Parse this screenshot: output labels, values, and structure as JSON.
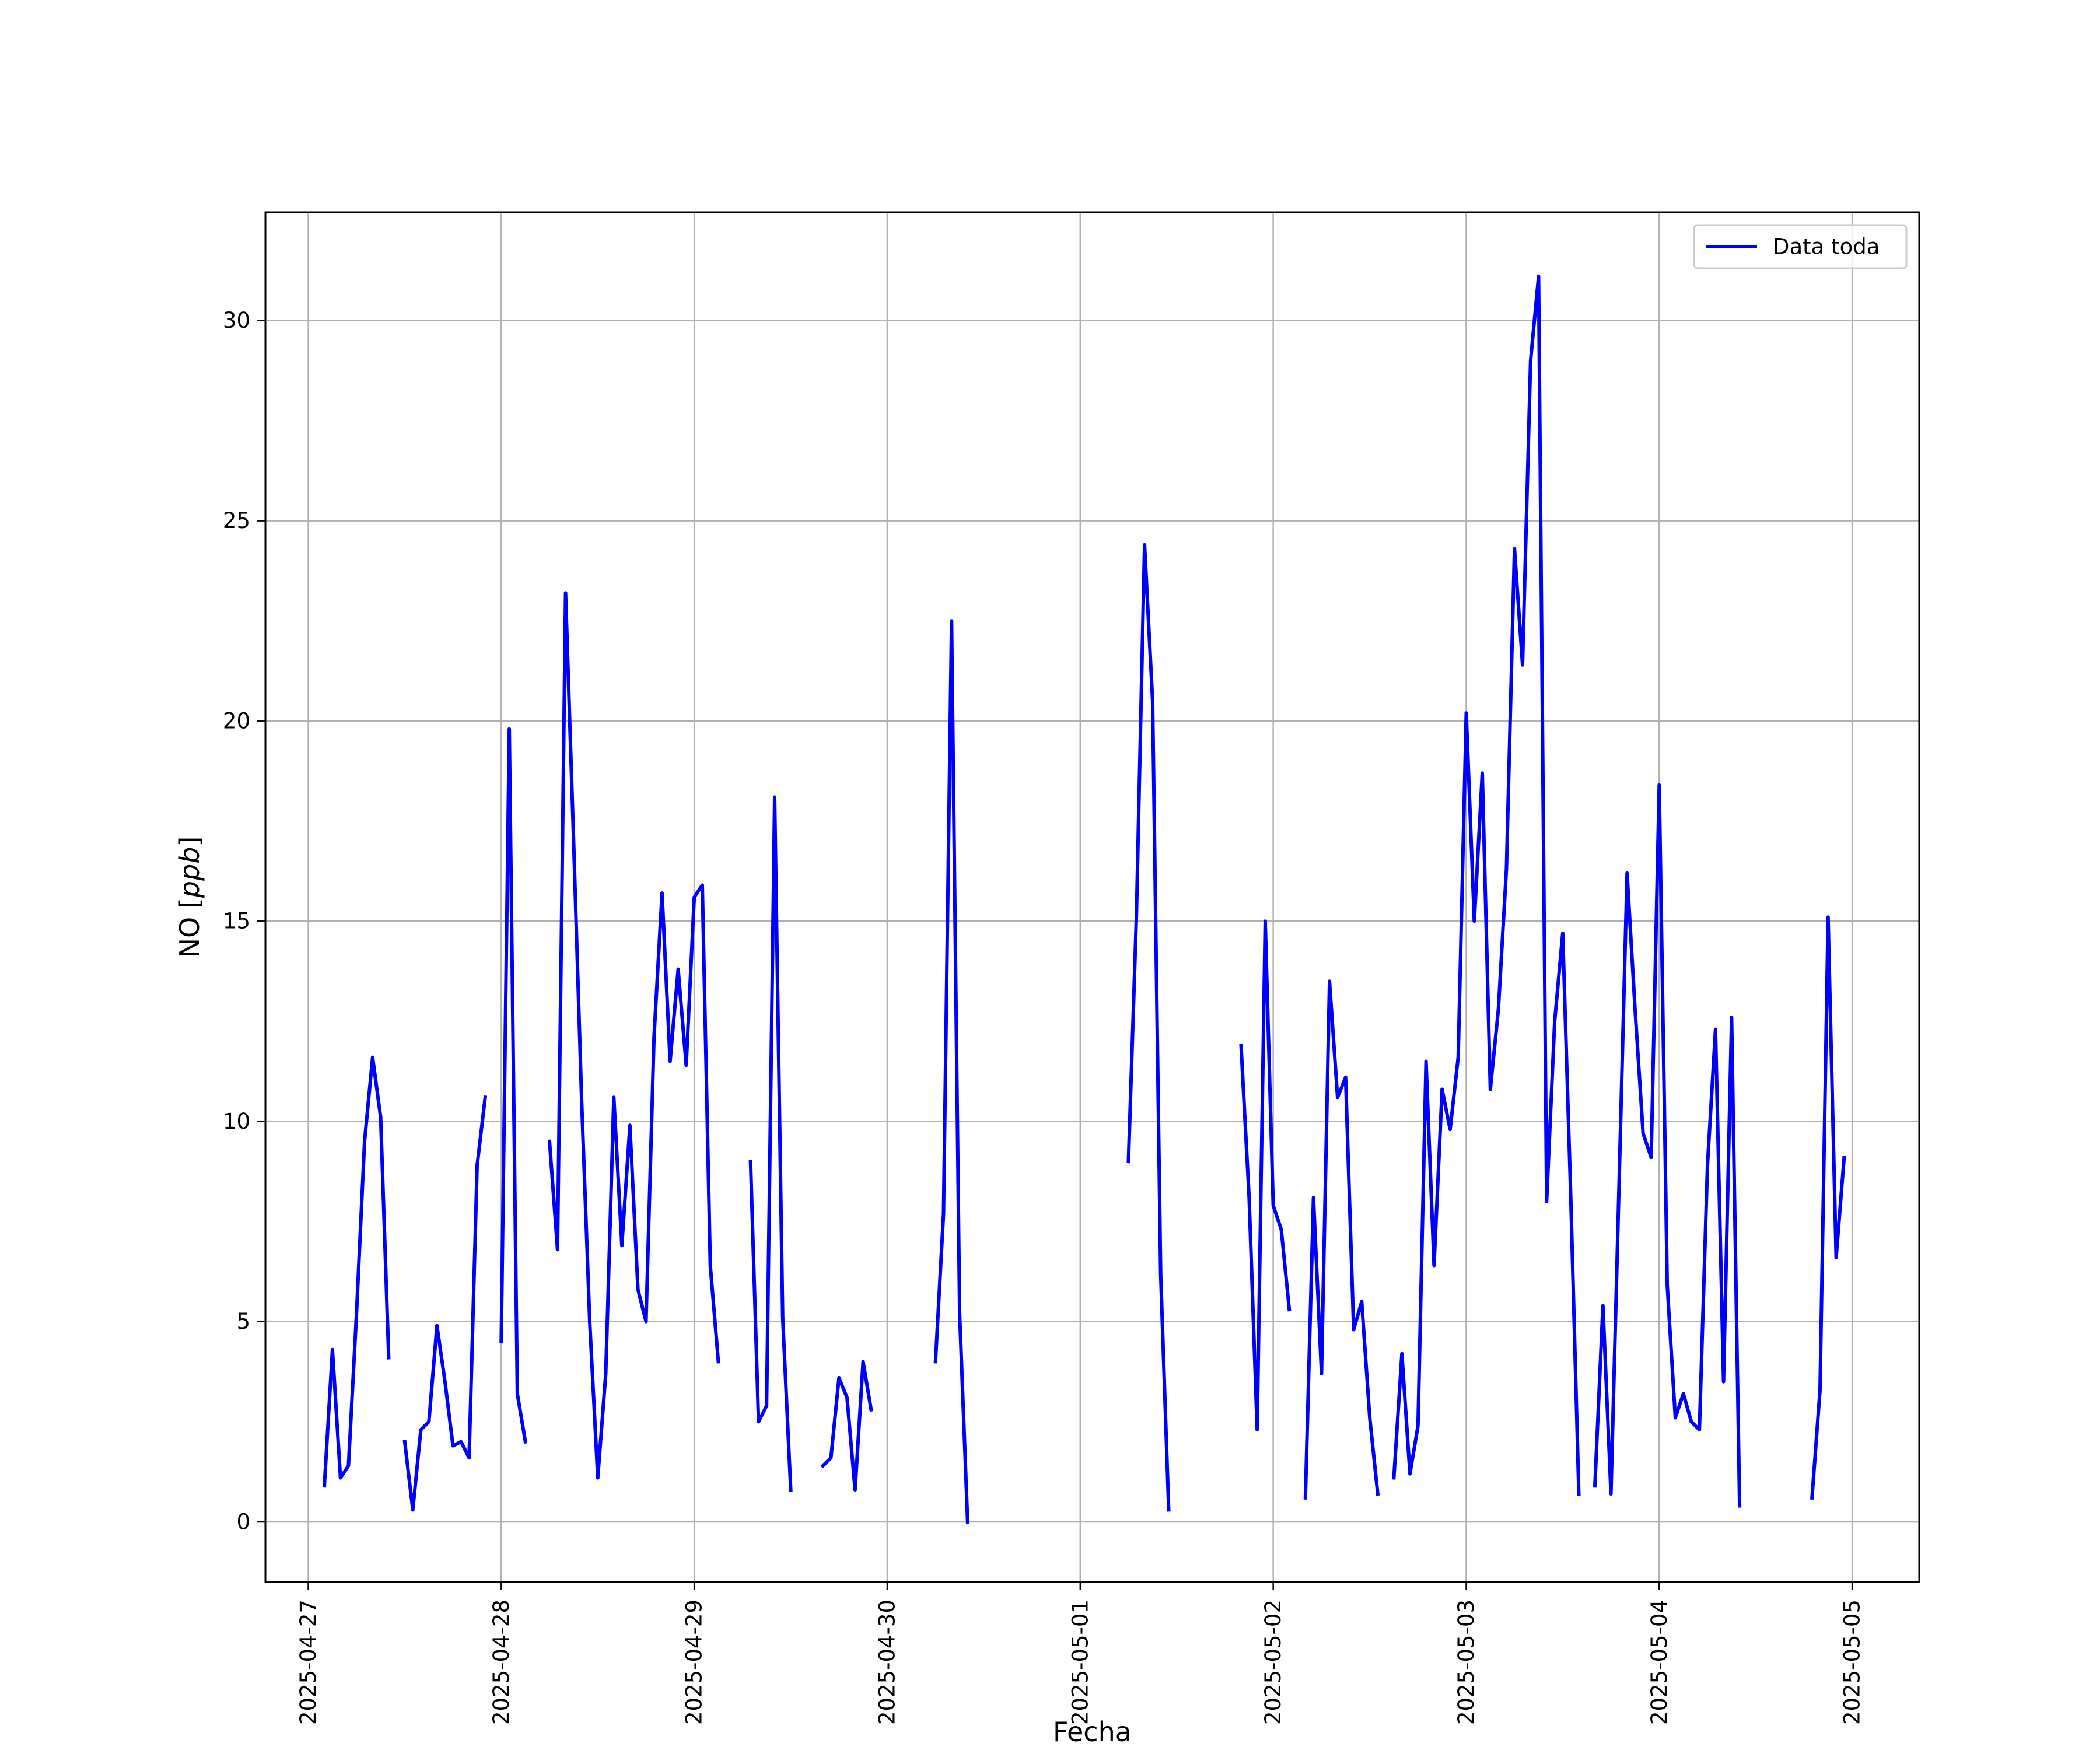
{
  "chart_data": {
    "type": "line",
    "title": "",
    "xlabel": "Fecha",
    "ylabel": "NO",
    "ylabel_unit": "ppb",
    "x_ticks": [
      "2025-04-27",
      "2025-04-28",
      "2025-04-29",
      "2025-04-30",
      "2025-05-01",
      "2025-05-02",
      "2025-05-03",
      "2025-05-04",
      "2025-05-05"
    ],
    "y_ticks": [
      0,
      5,
      10,
      15,
      20,
      25,
      30
    ],
    "xlim": [
      "2025-04-26T18:40",
      "2025-05-05T08:20"
    ],
    "ylim": [
      -1.5,
      32.7
    ],
    "grid": true,
    "legend_position": "top-right",
    "line_color": "#0000ff",
    "series": [
      {
        "name": "Data toda",
        "color": "#0000ff",
        "segments": [
          [
            [
              "2025-04-27T02:00",
              0.9
            ],
            [
              "2025-04-27T03:00",
              4.3
            ],
            [
              "2025-04-27T04:00",
              1.1
            ],
            [
              "2025-04-27T05:00",
              1.4
            ],
            [
              "2025-04-27T06:00",
              5.2
            ],
            [
              "2025-04-27T07:00",
              9.5
            ],
            [
              "2025-04-27T08:00",
              11.6
            ],
            [
              "2025-04-27T09:00",
              10.1
            ],
            [
              "2025-04-27T10:00",
              4.1
            ]
          ],
          [
            [
              "2025-04-27T12:00",
              2.0
            ],
            [
              "2025-04-27T13:00",
              0.3
            ],
            [
              "2025-04-27T14:00",
              2.3
            ],
            [
              "2025-04-27T15:00",
              2.5
            ],
            [
              "2025-04-27T16:00",
              4.9
            ],
            [
              "2025-04-27T17:00",
              3.5
            ],
            [
              "2025-04-27T18:00",
              1.9
            ],
            [
              "2025-04-27T19:00",
              2.0
            ],
            [
              "2025-04-27T20:00",
              1.6
            ],
            [
              "2025-04-27T21:00",
              8.9
            ],
            [
              "2025-04-27T22:00",
              10.6
            ]
          ],
          [
            [
              "2025-04-28T00:00",
              4.5
            ],
            [
              "2025-04-28T01:00",
              19.8
            ],
            [
              "2025-04-28T02:00",
              3.2
            ],
            [
              "2025-04-28T03:00",
              2.0
            ]
          ],
          [
            [
              "2025-04-28T06:00",
              9.5
            ],
            [
              "2025-04-28T07:00",
              6.8
            ],
            [
              "2025-04-28T08:00",
              23.2
            ],
            [
              "2025-04-28T09:00",
              17.0
            ],
            [
              "2025-04-28T10:00",
              10.5
            ],
            [
              "2025-04-28T11:00",
              5.0
            ],
            [
              "2025-04-28T12:00",
              1.1
            ],
            [
              "2025-04-28T13:00",
              3.7
            ],
            [
              "2025-04-28T14:00",
              10.6
            ],
            [
              "2025-04-28T15:00",
              6.9
            ],
            [
              "2025-04-28T16:00",
              9.9
            ],
            [
              "2025-04-28T17:00",
              5.8
            ],
            [
              "2025-04-28T18:00",
              5.0
            ],
            [
              "2025-04-28T19:00",
              12.1
            ],
            [
              "2025-04-28T20:00",
              15.7
            ],
            [
              "2025-04-28T21:00",
              11.5
            ],
            [
              "2025-04-28T22:00",
              13.8
            ],
            [
              "2025-04-28T23:00",
              11.4
            ],
            [
              "2025-04-29T00:00",
              15.6
            ],
            [
              "2025-04-29T01:00",
              15.9
            ],
            [
              "2025-04-29T02:00",
              6.4
            ],
            [
              "2025-04-29T03:00",
              4.0
            ]
          ],
          [
            [
              "2025-04-29T07:00",
              9.0
            ],
            [
              "2025-04-29T08:00",
              2.5
            ],
            [
              "2025-04-29T09:00",
              2.9
            ],
            [
              "2025-04-29T10:00",
              18.1
            ],
            [
              "2025-04-29T11:00",
              5.1
            ],
            [
              "2025-04-29T12:00",
              0.8
            ]
          ],
          [
            [
              "2025-04-29T16:00",
              1.4
            ],
            [
              "2025-04-29T17:00",
              1.6
            ],
            [
              "2025-04-29T18:00",
              3.6
            ],
            [
              "2025-04-29T19:00",
              3.1
            ],
            [
              "2025-04-29T20:00",
              0.8
            ],
            [
              "2025-04-29T21:00",
              4.0
            ],
            [
              "2025-04-29T22:00",
              2.8
            ]
          ],
          [
            [
              "2025-04-30T06:00",
              4.0
            ],
            [
              "2025-04-30T07:00",
              7.7
            ],
            [
              "2025-04-30T08:00",
              22.5
            ],
            [
              "2025-04-30T09:00",
              5.2
            ],
            [
              "2025-04-30T10:00",
              0.0
            ]
          ],
          [
            [
              "2025-05-01T06:00",
              9.0
            ],
            [
              "2025-05-01T07:00",
              15.2
            ],
            [
              "2025-05-01T08:00",
              24.4
            ],
            [
              "2025-05-01T09:00",
              20.5
            ],
            [
              "2025-05-01T10:00",
              6.2
            ],
            [
              "2025-05-01T11:00",
              0.3
            ]
          ],
          [
            [
              "2025-05-01T20:00",
              11.9
            ],
            [
              "2025-05-01T21:00",
              8.1
            ],
            [
              "2025-05-01T22:00",
              2.3
            ],
            [
              "2025-05-01T23:00",
              15.0
            ],
            [
              "2025-05-02T00:00",
              7.9
            ],
            [
              "2025-05-02T01:00",
              7.3
            ],
            [
              "2025-05-02T02:00",
              5.3
            ]
          ],
          [
            [
              "2025-05-02T04:00",
              0.6
            ],
            [
              "2025-05-02T05:00",
              8.1
            ],
            [
              "2025-05-02T06:00",
              3.7
            ],
            [
              "2025-05-02T07:00",
              13.5
            ],
            [
              "2025-05-02T08:00",
              10.6
            ],
            [
              "2025-05-02T09:00",
              11.1
            ],
            [
              "2025-05-02T10:00",
              4.8
            ],
            [
              "2025-05-02T11:00",
              5.5
            ],
            [
              "2025-05-02T12:00",
              2.6
            ],
            [
              "2025-05-02T13:00",
              0.7
            ]
          ],
          [
            [
              "2025-05-02T15:00",
              1.1
            ],
            [
              "2025-05-02T16:00",
              4.2
            ],
            [
              "2025-05-02T17:00",
              1.2
            ],
            [
              "2025-05-02T18:00",
              2.4
            ],
            [
              "2025-05-02T19:00",
              11.5
            ],
            [
              "2025-05-02T20:00",
              6.4
            ],
            [
              "2025-05-02T21:00",
              10.8
            ],
            [
              "2025-05-02T22:00",
              9.8
            ],
            [
              "2025-05-02T23:00",
              11.6
            ],
            [
              "2025-05-03T00:00",
              20.2
            ],
            [
              "2025-05-03T01:00",
              15.0
            ],
            [
              "2025-05-03T02:00",
              18.7
            ],
            [
              "2025-05-03T03:00",
              10.8
            ],
            [
              "2025-05-03T04:00",
              12.8
            ],
            [
              "2025-05-03T05:00",
              16.3
            ],
            [
              "2025-05-03T06:00",
              24.3
            ],
            [
              "2025-05-03T07:00",
              21.4
            ],
            [
              "2025-05-03T08:00",
              29.0
            ],
            [
              "2025-05-03T09:00",
              31.1
            ],
            [
              "2025-05-03T10:00",
              8.0
            ],
            [
              "2025-05-03T11:00",
              12.5
            ],
            [
              "2025-05-03T12:00",
              14.7
            ],
            [
              "2025-05-03T13:00",
              8.1
            ],
            [
              "2025-05-03T14:00",
              0.7
            ]
          ],
          [
            [
              "2025-05-03T16:00",
              0.9
            ],
            [
              "2025-05-03T17:00",
              5.4
            ],
            [
              "2025-05-03T18:00",
              0.7
            ],
            [
              "2025-05-03T19:00",
              8.4
            ],
            [
              "2025-05-03T20:00",
              16.2
            ],
            [
              "2025-05-03T21:00",
              12.8
            ],
            [
              "2025-05-03T22:00",
              9.7
            ],
            [
              "2025-05-03T23:00",
              9.1
            ],
            [
              "2025-05-04T00:00",
              18.4
            ],
            [
              "2025-05-04T01:00",
              5.9
            ],
            [
              "2025-05-04T02:00",
              2.6
            ],
            [
              "2025-05-04T03:00",
              3.2
            ],
            [
              "2025-05-04T04:00",
              2.5
            ],
            [
              "2025-05-04T05:00",
              2.3
            ],
            [
              "2025-05-04T06:00",
              8.9
            ],
            [
              "2025-05-04T07:00",
              12.3
            ],
            [
              "2025-05-04T08:00",
              3.5
            ],
            [
              "2025-05-04T09:00",
              12.6
            ],
            [
              "2025-05-04T10:00",
              0.4
            ]
          ],
          [
            [
              "2025-05-04T19:00",
              0.6
            ],
            [
              "2025-05-04T20:00",
              3.3
            ],
            [
              "2025-05-04T21:00",
              15.1
            ],
            [
              "2025-05-04T22:00",
              6.6
            ],
            [
              "2025-05-04T23:00",
              9.1
            ]
          ]
        ]
      }
    ]
  }
}
